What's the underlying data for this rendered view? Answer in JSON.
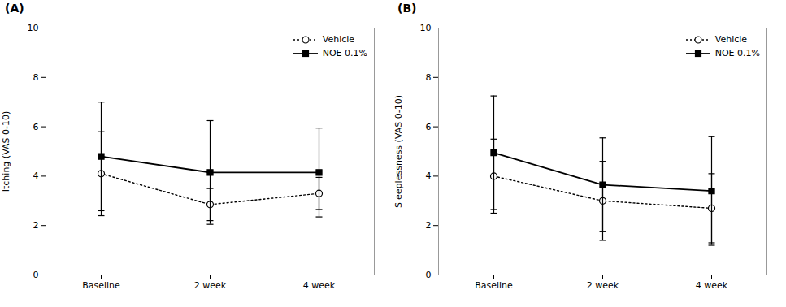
{
  "chart_data": [
    {
      "type": "line",
      "title": "(A)",
      "ylabel": "Itching (VAS 0-10)",
      "categories": [
        "Baseline",
        "2 week",
        "4 week"
      ],
      "series": [
        {
          "name": "Vehicle",
          "color": "black",
          "values": [
            4.1,
            2.85,
            3.3
          ],
          "errors": [
            1.7,
            0.65,
            0.65
          ],
          "marker": "open_circle",
          "line_style": "dotted"
        },
        {
          "name": "NOE 0.1%",
          "color": "black",
          "values": [
            4.8,
            4.15,
            4.15
          ],
          "errors": [
            2.2,
            2.1,
            1.8
          ],
          "marker": "square",
          "line_style": "solid"
        }
      ],
      "ylim": [
        0,
        10
      ],
      "yticks": [
        0,
        2,
        4,
        6,
        8,
        10
      ],
      "grid": false,
      "legend": "upper right"
    },
    {
      "type": "line",
      "title": "(B)",
      "ylabel": "Sleeplessness (VAS 0-10)",
      "categories": [
        "Baseline",
        "2 week",
        "4 week"
      ],
      "series": [
        {
          "name": "Vehicle",
          "color": "black",
          "values": [
            4.0,
            3.0,
            2.7
          ],
          "errors": [
            1.5,
            1.6,
            1.4
          ],
          "marker": "open_circle",
          "line_style": "dotted"
        },
        {
          "name": "NOE 0.1%",
          "color": "black",
          "values": [
            4.95,
            3.65,
            3.4
          ],
          "errors": [
            2.3,
            1.9,
            2.2
          ],
          "marker": "square",
          "line_style": "solid"
        }
      ],
      "ylim": [
        0,
        10
      ],
      "yticks": [
        0,
        2,
        4,
        6,
        8,
        10
      ],
      "grid": false,
      "legend": "upper right"
    }
  ]
}
